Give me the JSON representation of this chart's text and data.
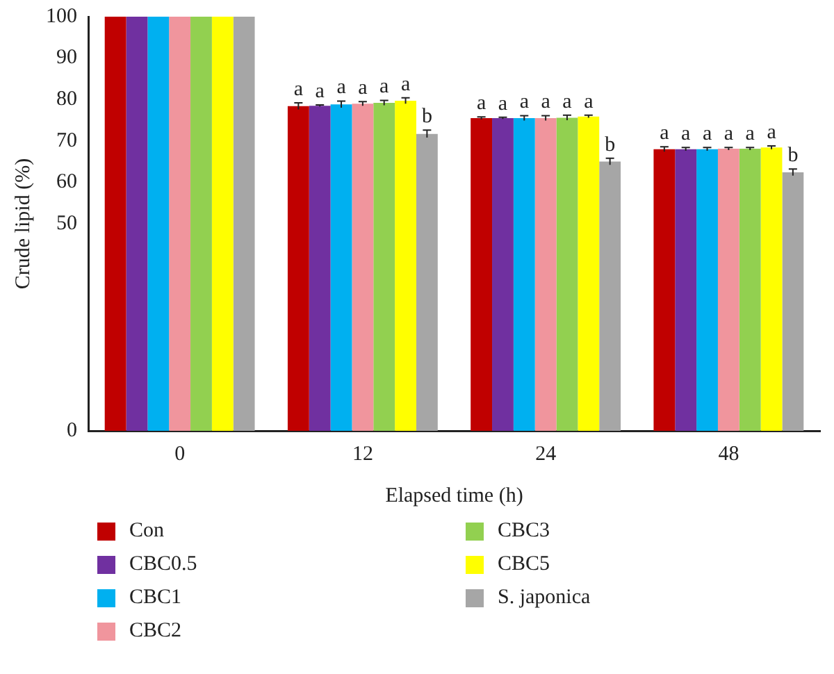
{
  "chart_data": {
    "type": "bar",
    "xlabel": "Elapsed time (h)",
    "ylabel": "Crude lipid (%)",
    "categories": [
      "0",
      "12",
      "24",
      "48"
    ],
    "series": [
      {
        "name": "Con",
        "color": "#c00000",
        "values": [
          100,
          78.4,
          75.5,
          68.0
        ],
        "errors": [
          null,
          0.8,
          0.3,
          0.6
        ]
      },
      {
        "name": "CBC0.5",
        "color": "#7030a0",
        "values": [
          100,
          78.5,
          75.5,
          68.0
        ],
        "errors": [
          null,
          0.2,
          0.2,
          0.4
        ]
      },
      {
        "name": "CBC1",
        "color": "#00b0f0",
        "values": [
          100,
          78.8,
          75.5,
          68.0
        ],
        "errors": [
          null,
          0.8,
          0.6,
          0.4
        ]
      },
      {
        "name": "CBC2",
        "color": "#f0959d",
        "values": [
          100,
          79.0,
          75.5,
          68.1
        ],
        "errors": [
          null,
          0.5,
          0.6,
          0.3
        ]
      },
      {
        "name": "CBC3",
        "color": "#92d050",
        "values": [
          100,
          79.2,
          75.6,
          68.1
        ],
        "errors": [
          null,
          0.6,
          0.6,
          0.3
        ]
      },
      {
        "name": "CBC5",
        "color": "#ffff00",
        "values": [
          100,
          79.7,
          75.9,
          68.4
        ],
        "errors": [
          null,
          0.7,
          0.3,
          0.4
        ]
      },
      {
        "name": "S. japonica",
        "color": "#a6a6a6",
        "values": [
          100,
          71.7,
          65.0,
          62.4
        ],
        "errors": [
          null,
          0.9,
          0.8,
          0.8
        ]
      }
    ],
    "ylim": [
      0,
      100
    ],
    "yticks": [
      0,
      50,
      60,
      70,
      80,
      90,
      100
    ],
    "grid": false,
    "legend": "bottom",
    "annotations": [
      "a",
      "a",
      "a",
      "a",
      "a",
      "a",
      "b",
      "a",
      "a",
      "a",
      "a",
      "a",
      "a",
      "b",
      "a",
      "a",
      "a",
      "a",
      "a",
      "a",
      "b"
    ]
  }
}
